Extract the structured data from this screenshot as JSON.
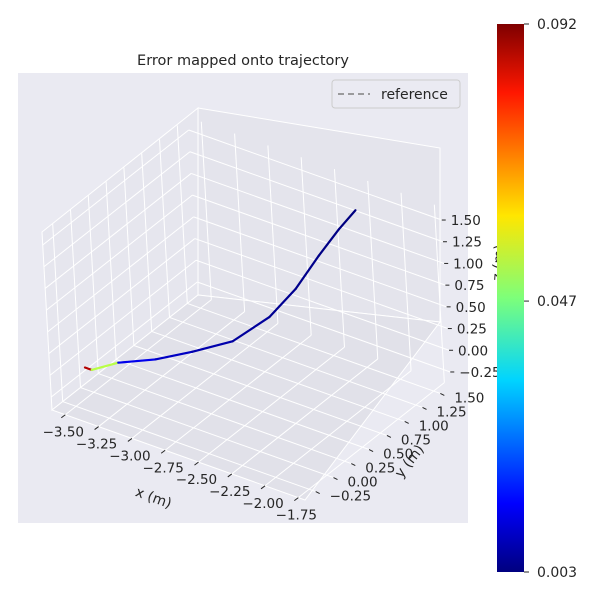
{
  "chart_data": {
    "type": "line",
    "projection": "3d",
    "title": "Error mapped onto trajectory",
    "xlabel": "x (m)",
    "ylabel": "y (m)",
    "zlabel": "z (m)",
    "xlim": [
      -3.6,
      -1.7
    ],
    "ylim": [
      -0.4,
      1.65
    ],
    "zlim": [
      -0.4,
      1.65
    ],
    "x_ticks": [
      "−3.50",
      "−3.25",
      "−3.00",
      "−2.75",
      "−2.50",
      "−2.25",
      "−2.00",
      "−1.75"
    ],
    "y_ticks": [
      "−0.25",
      "0.00",
      "0.25",
      "0.50",
      "0.75",
      "1.00",
      "1.25",
      "1.50"
    ],
    "z_ticks": [
      "−0.25",
      "0.00",
      "0.25",
      "0.50",
      "0.75",
      "1.00",
      "1.25",
      "1.50"
    ],
    "legend": {
      "entries": [
        "reference"
      ],
      "placement": "upper-right"
    },
    "grid": true,
    "colorbar": {
      "colormap": "jet",
      "min": 0.003,
      "max": 0.092,
      "ticks": [
        "0.003",
        "0.047",
        "0.092"
      ]
    },
    "series": [
      {
        "name": "reference",
        "style": "dashed",
        "color": "#808080",
        "x": [
          -3.45,
          -3.3,
          -3.1,
          -2.9,
          -2.7,
          -2.55,
          -2.45,
          -2.4,
          -2.35,
          -2.3
        ],
        "y": [
          -0.1,
          0.0,
          0.15,
          0.3,
          0.5,
          0.75,
          0.95,
          1.2,
          1.4,
          1.55
        ],
        "z": [
          -0.05,
          0.05,
          0.1,
          0.2,
          0.3,
          0.5,
          0.75,
          1.0,
          1.2,
          1.35
        ]
      },
      {
        "name": "",
        "style": "colormapped",
        "x": [
          -3.5,
          -3.45,
          -3.3,
          -3.1,
          -2.9,
          -2.7,
          -2.55,
          -2.45,
          -2.4,
          -2.35,
          -2.3
        ],
        "y": [
          -0.1,
          -0.1,
          0.0,
          0.15,
          0.3,
          0.5,
          0.75,
          0.95,
          1.2,
          1.4,
          1.55
        ],
        "z": [
          -0.05,
          -0.05,
          0.05,
          0.1,
          0.2,
          0.3,
          0.5,
          0.75,
          1.0,
          1.2,
          1.35
        ],
        "error": [
          0.085,
          0.09,
          0.015,
          0.01,
          0.008,
          0.006,
          0.005,
          0.004,
          0.004,
          0.003,
          0.003
        ]
      }
    ]
  }
}
